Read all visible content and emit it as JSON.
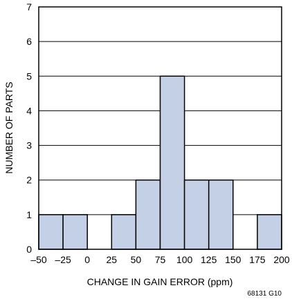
{
  "chart_data": {
    "type": "bar",
    "subtype": "histogram",
    "title": "",
    "xlabel": "CHANGE IN GAIN ERROR (ppm)",
    "ylabel": "NUMBER OF PARTS",
    "figure_code": "68131 G10",
    "xlim": [
      -50,
      200
    ],
    "ylim": [
      0,
      7
    ],
    "x_ticks": [
      {
        "value": -50,
        "label": "–50"
      },
      {
        "value": -25,
        "label": "–25"
      },
      {
        "value": 0,
        "label": "0"
      },
      {
        "value": 25,
        "label": "25"
      },
      {
        "value": 50,
        "label": "50"
      },
      {
        "value": 75,
        "label": "75"
      },
      {
        "value": 100,
        "label": "100"
      },
      {
        "value": 125,
        "label": "125"
      },
      {
        "value": 150,
        "label": "150"
      },
      {
        "value": 175,
        "label": "175"
      },
      {
        "value": 200,
        "label": "200"
      }
    ],
    "y_ticks": [
      0,
      1,
      2,
      3,
      4,
      5,
      6,
      7
    ],
    "grid": {
      "horizontal": true,
      "vertical": false
    },
    "bins": [
      {
        "start": -50,
        "end": -25,
        "count": 1
      },
      {
        "start": -25,
        "end": 0,
        "count": 1
      },
      {
        "start": 0,
        "end": 25,
        "count": 0
      },
      {
        "start": 25,
        "end": 50,
        "count": 1
      },
      {
        "start": 50,
        "end": 75,
        "count": 2
      },
      {
        "start": 75,
        "end": 100,
        "count": 5
      },
      {
        "start": 100,
        "end": 125,
        "count": 2
      },
      {
        "start": 125,
        "end": 150,
        "count": 2
      },
      {
        "start": 150,
        "end": 175,
        "count": 0
      },
      {
        "start": 175,
        "end": 200,
        "count": 1
      }
    ],
    "colors": {
      "bar_fill": "#c3d0e6",
      "bar_stroke": "#000000",
      "grid": "#000000",
      "axis": "#000000"
    }
  }
}
